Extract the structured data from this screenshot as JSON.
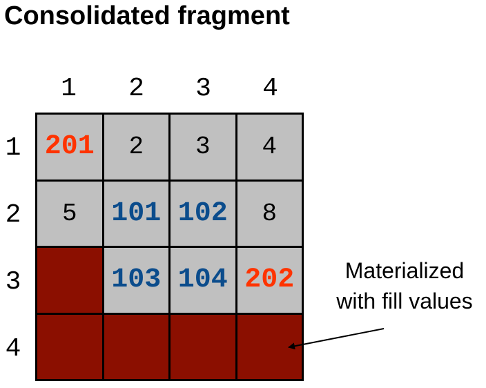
{
  "title": "Consolidated fragment",
  "col_labels": [
    "1",
    "2",
    "3",
    "4"
  ],
  "row_labels": [
    "1",
    "2",
    "3",
    "4"
  ],
  "colors": {
    "cell_fill": "#c0c0c0",
    "empty_fill": "#8b0f00",
    "new_value": "#ff3300",
    "updated_value": "#0b4c8c",
    "grid_line": "#000000"
  },
  "cells": [
    [
      {
        "v": "201",
        "k": "new"
      },
      {
        "v": "2",
        "k": "filled"
      },
      {
        "v": "3",
        "k": "filled"
      },
      {
        "v": "4",
        "k": "filled"
      }
    ],
    [
      {
        "v": "5",
        "k": "filled"
      },
      {
        "v": "101",
        "k": "upd"
      },
      {
        "v": "102",
        "k": "upd"
      },
      {
        "v": "8",
        "k": "filled"
      }
    ],
    [
      {
        "v": "",
        "k": "empty"
      },
      {
        "v": "103",
        "k": "upd"
      },
      {
        "v": "104",
        "k": "upd"
      },
      {
        "v": "202",
        "k": "new"
      }
    ],
    [
      {
        "v": "",
        "k": "empty"
      },
      {
        "v": "",
        "k": "empty"
      },
      {
        "v": "",
        "k": "empty"
      },
      {
        "v": "",
        "k": "empty"
      }
    ]
  ],
  "annotation": {
    "line1": "Materialized",
    "line2": "with fill values"
  }
}
